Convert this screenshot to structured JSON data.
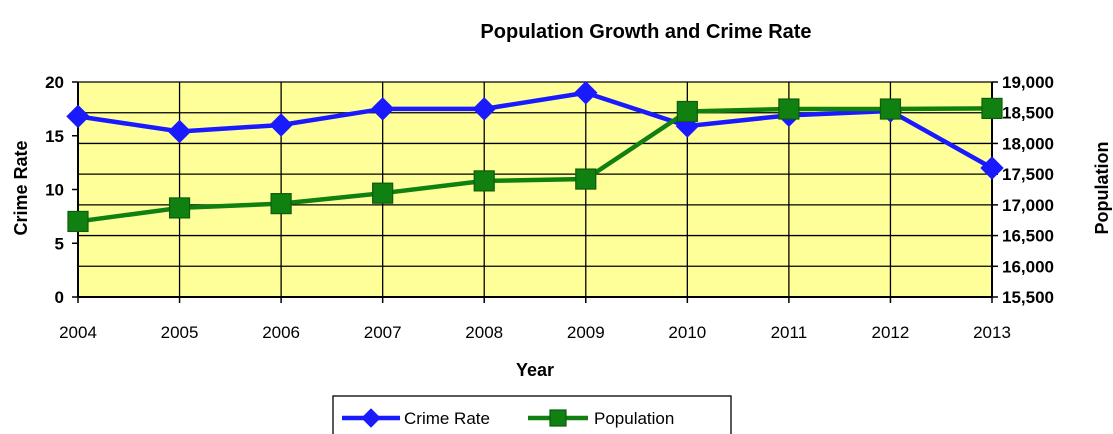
{
  "chart_data": {
    "type": "line",
    "title": "Population Growth and Crime Rate",
    "xlabel": "Year",
    "ylabel_left": "Crime Rate",
    "ylabel_right": "Population",
    "categories": [
      "2004",
      "2005",
      "2006",
      "2007",
      "2008",
      "2009",
      "2010",
      "2011",
      "2012",
      "2013"
    ],
    "ylim_left": [
      0,
      20
    ],
    "yticks_left": [
      "0",
      "5",
      "10",
      "15",
      "20"
    ],
    "ylim_right": [
      15500,
      19000
    ],
    "yticks_right": [
      "15,500",
      "16,000",
      "16,500",
      "17,000",
      "17,500",
      "18,000",
      "18,500",
      "19,000"
    ],
    "grid": true,
    "legend_position": "bottom",
    "series": [
      {
        "name": "Crime Rate",
        "axis": "left",
        "marker": "diamond",
        "color": "#1a1aff",
        "values": [
          16.8,
          15.4,
          16.0,
          17.5,
          17.5,
          19.0,
          15.9,
          16.9,
          17.3,
          12.0
        ]
      },
      {
        "name": "Population",
        "axis": "right",
        "marker": "square",
        "color": "#108010",
        "values": [
          16730,
          16950,
          17020,
          17190,
          17390,
          17420,
          18520,
          18560,
          18560,
          18570
        ]
      }
    ],
    "plot_background": "#ffff99"
  }
}
